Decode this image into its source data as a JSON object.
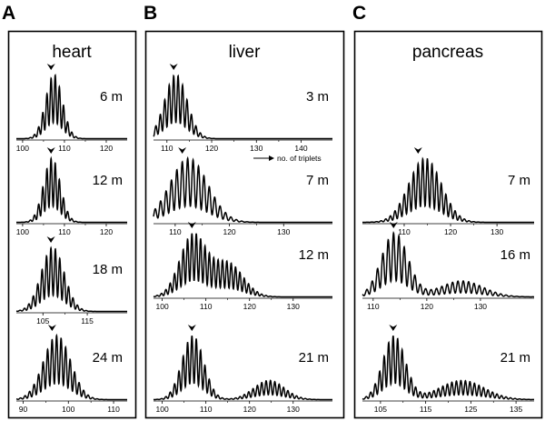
{
  "arrow_label": "no. of triplets",
  "chart_data": [
    {
      "type": "line",
      "panel": "A",
      "title": "heart",
      "subplots": [
        {
          "label": "6 m",
          "ticks": [
            100,
            110,
            120
          ],
          "xlim": [
            98.5,
            125
          ],
          "center": 107.5,
          "spread": 2.0,
          "second_peak": null,
          "mode": 106.8
        },
        {
          "label": "12 m",
          "ticks": [
            100,
            110,
            120
          ],
          "xlim": [
            98.5,
            125
          ],
          "center": 107.0,
          "spread": 2.0,
          "second_peak": null,
          "mode": 106.8
        },
        {
          "label": "18 m",
          "ticks": [
            105,
            115
          ],
          "xlim": [
            99,
            124
          ],
          "center": 107.2,
          "spread": 2.6,
          "second_peak": null,
          "mode": 106.8
        },
        {
          "label": "24 m",
          "ticks": [
            90,
            100,
            110
          ],
          "xlim": [
            88.5,
            113
          ],
          "center": 97.5,
          "spread": 3.0,
          "second_peak": null,
          "mode": 96.4
        }
      ]
    },
    {
      "type": "line",
      "panel": "B",
      "title": "liver",
      "subplots": [
        {
          "label": "3 m",
          "ticks": [
            110,
            120,
            130,
            140
          ],
          "xlim": [
            107,
            147
          ],
          "center": 112.0,
          "spread": 2.5,
          "second_peak": null,
          "mode": 111.5
        },
        {
          "label": "7 m",
          "ticks": [
            110,
            120,
            130
          ],
          "xlim": [
            106,
            139
          ],
          "center": 112.5,
          "spread": 3.5,
          "second_peak": null,
          "mode": 111.3
        },
        {
          "label": "12 m",
          "ticks": [
            100,
            110,
            120,
            130
          ],
          "xlim": [
            98,
            139
          ],
          "center": 107.0,
          "spread": 3.0,
          "second_peak": {
            "center": 115.0,
            "spread": 3.5,
            "height": 0.55
          },
          "mode": 106.8
        },
        {
          "label": "21 m",
          "ticks": [
            100,
            110,
            120,
            130
          ],
          "xlim": [
            98,
            139
          ],
          "center": 107.0,
          "spread": 2.5,
          "second_peak": {
            "center": 124.5,
            "spread": 3.5,
            "height": 0.3
          },
          "mode": 106.8
        }
      ]
    },
    {
      "type": "line",
      "panel": "C",
      "title": "pancreas",
      "subplots": [
        {
          "label": "7 m",
          "ticks": [
            110,
            120,
            130
          ],
          "xlim": [
            101,
            138
          ],
          "center": 114.5,
          "spread": 3.5,
          "second_peak": null,
          "mode": 113.0
        },
        {
          "label": "16 m",
          "ticks": [
            110,
            120,
            130
          ],
          "xlim": [
            108,
            140
          ],
          "center": 114.0,
          "spread": 2.5,
          "second_peak": {
            "center": 126.5,
            "spread": 4.0,
            "height": 0.25
          },
          "mode": 113.8
        },
        {
          "label": "21 m",
          "ticks": [
            105,
            115,
            125,
            135
          ],
          "xlim": [
            101,
            139
          ],
          "center": 108.0,
          "spread": 2.5,
          "second_peak": {
            "center": 123.0,
            "spread": 5.0,
            "height": 0.3
          },
          "mode": 107.8
        }
      ]
    }
  ]
}
